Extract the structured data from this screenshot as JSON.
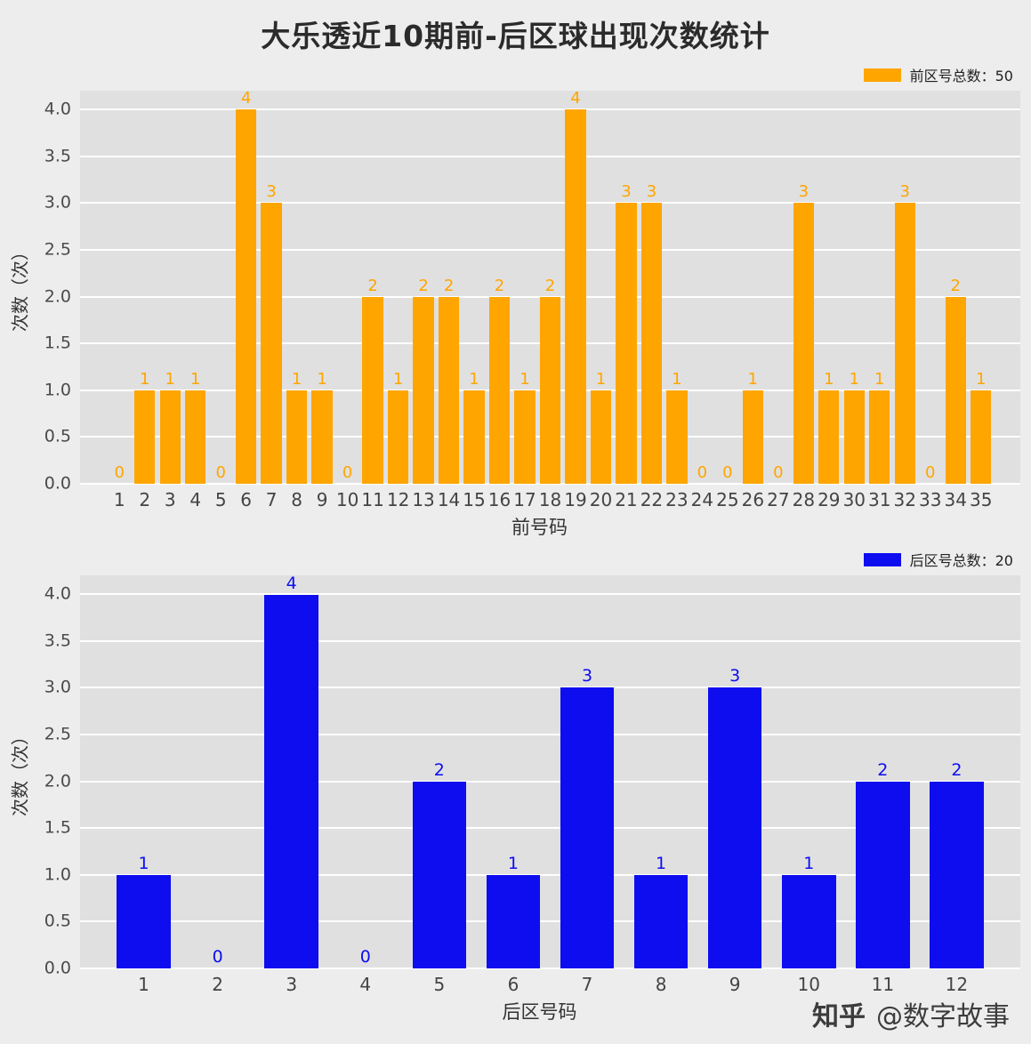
{
  "page": {
    "title": "大乐透近10期前-后区球出现次数统计",
    "watermark_brand": "知乎",
    "watermark_handle": "@数字故事"
  },
  "colors": {
    "front": "#ffa500",
    "back": "#0d0df0",
    "page_bg": "#ededed",
    "plot_bg": "#e0e0e0",
    "grid": "#ffffff"
  },
  "chart_data": [
    {
      "type": "bar",
      "legend_label": "前区号总数：50",
      "legend_position": "top-right",
      "color_key": "front",
      "categories": [
        "1",
        "2",
        "3",
        "4",
        "5",
        "6",
        "7",
        "8",
        "9",
        "10",
        "11",
        "12",
        "13",
        "14",
        "15",
        "16",
        "17",
        "18",
        "19",
        "20",
        "21",
        "22",
        "23",
        "24",
        "25",
        "26",
        "27",
        "28",
        "29",
        "30",
        "31",
        "32",
        "33",
        "34",
        "35"
      ],
      "values": [
        0,
        1,
        1,
        1,
        0,
        4,
        3,
        1,
        1,
        0,
        2,
        1,
        2,
        2,
        1,
        2,
        1,
        2,
        4,
        1,
        3,
        3,
        1,
        0,
        0,
        1,
        0,
        3,
        1,
        1,
        1,
        3,
        0,
        2,
        1
      ],
      "xlabel": "前号码",
      "ylabel": "次数（次）",
      "ylim": [
        0,
        4.2
      ],
      "yticks": [
        0,
        0.5,
        1,
        1.5,
        2,
        2.5,
        3,
        3.5,
        4
      ],
      "ytick_labels": [
        "0.0",
        "0.5",
        "1.0",
        "1.5",
        "2.0",
        "2.5",
        "3.0",
        "3.5",
        "4.0"
      ],
      "grid": true
    },
    {
      "type": "bar",
      "legend_label": "后区号总数：20",
      "legend_position": "top-right",
      "color_key": "back",
      "categories": [
        "1",
        "2",
        "3",
        "4",
        "5",
        "6",
        "7",
        "8",
        "9",
        "10",
        "11",
        "12"
      ],
      "values": [
        1,
        0,
        4,
        0,
        2,
        1,
        3,
        1,
        3,
        1,
        2,
        2
      ],
      "xlabel": "后区号码",
      "ylabel": "次数（次）",
      "ylim": [
        0,
        4.2
      ],
      "yticks": [
        0,
        0.5,
        1,
        1.5,
        2,
        2.5,
        3,
        3.5,
        4
      ],
      "ytick_labels": [
        "0.0",
        "0.5",
        "1.0",
        "1.5",
        "2.0",
        "2.5",
        "3.0",
        "3.5",
        "4.0"
      ],
      "grid": true
    }
  ]
}
